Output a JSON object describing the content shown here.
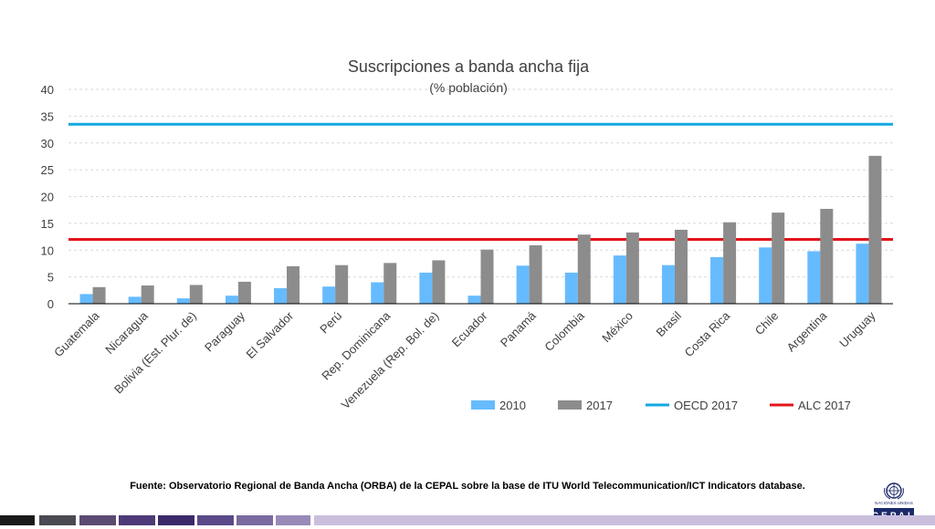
{
  "chart_data": {
    "type": "bar",
    "title": "Suscripciones a banda ancha fija",
    "subtitle": "(% población)",
    "xlabel": "",
    "ylabel": "",
    "ylim": [
      0,
      40
    ],
    "yticks": [
      0,
      5,
      10,
      15,
      20,
      25,
      30,
      35,
      40
    ],
    "grid": true,
    "legend_position": "bottom-right",
    "categories": [
      "Guatemala",
      "Nicaragua",
      "Bolivia (Est. Plur. de)",
      "Paraguay",
      "El Salvador",
      "Perú",
      "Rep. Dominicana",
      "Venezuela (Rep. Bol. de)",
      "Ecuador",
      "Panamá",
      "Colombia",
      "México",
      "Brasil",
      "Costa Rica",
      "Chile",
      "Argentina",
      "Uruguay"
    ],
    "series": [
      {
        "name": "2010",
        "color": "#66BBFF",
        "values": [
          1.8,
          1.3,
          1.0,
          1.5,
          2.9,
          3.2,
          4.0,
          5.8,
          1.5,
          7.1,
          5.8,
          9.0,
          7.2,
          8.7,
          10.5,
          9.8,
          11.2
        ]
      },
      {
        "name": "2017",
        "color": "#8C8C8C",
        "values": [
          3.1,
          3.4,
          3.5,
          4.1,
          7.0,
          7.2,
          7.6,
          8.1,
          10.1,
          10.9,
          12.9,
          13.3,
          13.8,
          15.2,
          17.0,
          17.7,
          27.6
        ]
      }
    ],
    "reference_lines": [
      {
        "name": "OECD 2017",
        "color": "#12A8E0",
        "value": 33.5
      },
      {
        "name": "ALC 2017",
        "color": "#E3141B",
        "value": 12.0
      }
    ]
  },
  "source_text": "Fuente: Observatorio Regional de Banda Ancha (ORBA) de la CEPAL sobre la base de ITU World Telecommunication/ICT Indicators database.",
  "logo": {
    "caption": "NACIONES UNIDAS",
    "name": "CEPAL"
  },
  "footer_colors": [
    "#1a1a1a",
    "#4a4a52",
    "#5b4a72",
    "#4e3a78",
    "#3a2a6a",
    "#5b4a8a",
    "#7a6aa0",
    "#9a8ab8",
    "#c9bfdd"
  ]
}
